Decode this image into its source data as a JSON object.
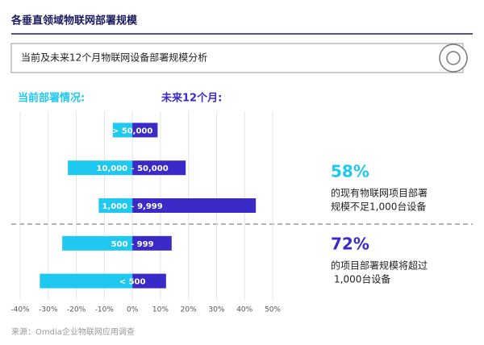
{
  "chart_data": {
    "type": "diverging_bar",
    "title": "各垂直领域物联网部署规模",
    "subtitle": "当前及未来12个月物联网设备部署规模分析",
    "categories": [
      "> 50,000",
      "10,000 – 50,000",
      "1,000 – 9,999",
      "500 - 999",
      "< 500"
    ],
    "series": [
      {
        "name": "当前部署情况:",
        "color": "#1ec8ee",
        "values": [
          -7,
          -23,
          -12,
          -25,
          -33
        ]
      },
      {
        "name": "未来12个月:",
        "color": "#3a2ac8",
        "values": [
          9,
          19,
          44,
          14,
          12
        ]
      }
    ],
    "xlim": [
      -40,
      50
    ],
    "xticks": [
      {
        "value": -40,
        "label": "-40%"
      },
      {
        "value": -30,
        "label": "-30%"
      },
      {
        "value": -20,
        "label": "-20%"
      },
      {
        "value": -10,
        "label": "-10%"
      },
      {
        "value": 0,
        "label": "0%"
      },
      {
        "value": 10,
        "label": "10%"
      },
      {
        "value": 20,
        "label": "20%"
      },
      {
        "value": 30,
        "label": "30%"
      },
      {
        "value": 40,
        "label": "40%"
      },
      {
        "value": 50,
        "label": "50%"
      }
    ],
    "grid": true,
    "annotations": [
      {
        "value": "58%",
        "lines": [
          "的现有物联网项目部署",
          "规模不足1,000台设备"
        ]
      },
      {
        "value": "72%",
        "lines": [
          "的项目部署规模将超过",
          "1,000台设备"
        ]
      }
    ],
    "source": "来源：Omdia企业物联网应用调查"
  }
}
